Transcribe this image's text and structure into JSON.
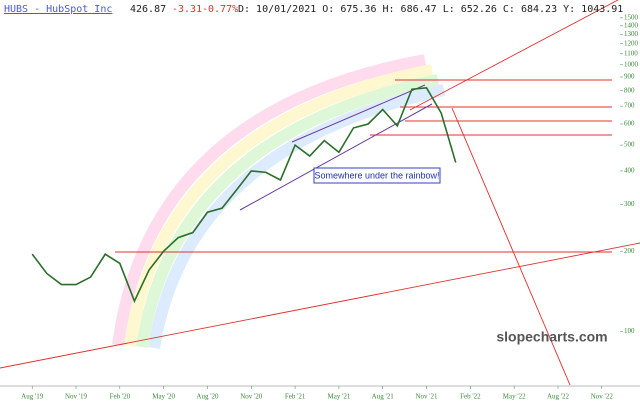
{
  "chart_data": {
    "type": "line",
    "title": "HUBS - HubSpot Inc",
    "last": "426.87",
    "change": "-3.31",
    "change_pct": "-0.77%",
    "ohlc": "D: 10/01/2021 O: 675.36 H: 686.47 L: 652.26 C: 684.23 Y: 1043.91",
    "annotation": "Somewhere under the rainbow!",
    "watermark": "slopecharts.com",
    "log_scale": true,
    "grid": false,
    "x": [
      "2019-08",
      "2019-09",
      "2019-10",
      "2019-11",
      "2019-12",
      "2020-01",
      "2020-02",
      "2020-03",
      "2020-04",
      "2020-05",
      "2020-06",
      "2020-07",
      "2020-08",
      "2020-09",
      "2020-10",
      "2020-11",
      "2020-12",
      "2021-01",
      "2021-02",
      "2021-03",
      "2021-04",
      "2021-05",
      "2021-06",
      "2021-07",
      "2021-08",
      "2021-09",
      "2021-10",
      "2021-11",
      "2021-12",
      "2022-01"
    ],
    "series": [
      {
        "name": "HUBS",
        "color": "#2a6e2a",
        "values": [
          195,
          165,
          150,
          150,
          160,
          195,
          180,
          130,
          170,
          200,
          225,
          235,
          280,
          290,
          340,
          400,
          395,
          370,
          500,
          455,
          520,
          470,
          580,
          600,
          680,
          590,
          810,
          820,
          660,
          430
        ]
      }
    ],
    "xlim": [
      "2019-06",
      "2023-01"
    ],
    "xticks": [
      {
        "value": "2019-08",
        "label": "Aug '19"
      },
      {
        "value": "2019-11",
        "label": "Nov '19"
      },
      {
        "value": "2020-02",
        "label": "Feb '20"
      },
      {
        "value": "2020-05",
        "label": "May '20"
      },
      {
        "value": "2020-08",
        "label": "Aug '20"
      },
      {
        "value": "2020-11",
        "label": "Nov '20"
      },
      {
        "value": "2021-02",
        "label": "Feb '21"
      },
      {
        "value": "2021-05",
        "label": "May '21"
      },
      {
        "value": "2021-08",
        "label": "Aug '21"
      },
      {
        "value": "2021-11",
        "label": "Nov '21"
      },
      {
        "value": "2022-02",
        "label": "Feb '22"
      },
      {
        "value": "2022-05",
        "label": "May '22"
      },
      {
        "value": "2022-08",
        "label": "Aug '22"
      },
      {
        "value": "2022-11",
        "label": "Nov '22"
      }
    ],
    "ylim": [
      63,
      1750
    ],
    "yticks": [
      100,
      200,
      300,
      400,
      500,
      600,
      700,
      800,
      900,
      1000,
      1100,
      1200,
      1300,
      1400,
      1500
    ]
  }
}
